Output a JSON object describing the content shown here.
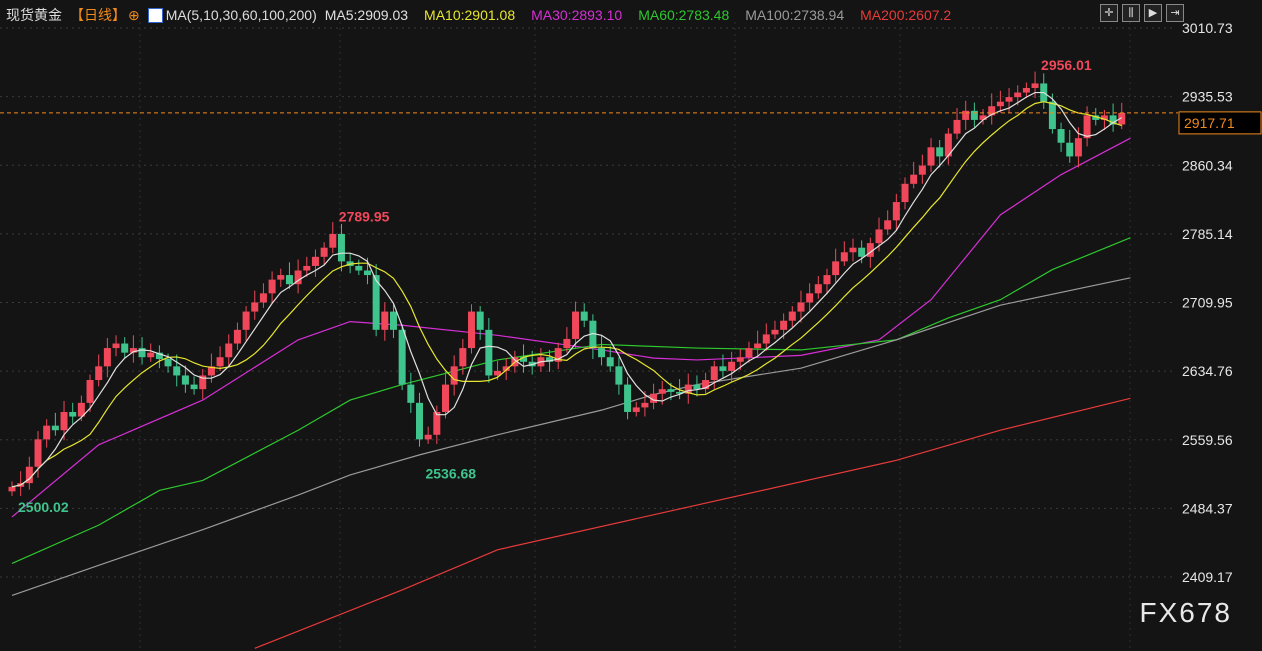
{
  "header": {
    "symbol": "现货黄金",
    "period": "【日线】",
    "ma_label": "MA(5,10,30,60,100,200)",
    "ma": [
      {
        "label": "MA5:2909.03",
        "color": "#e0e0e0"
      },
      {
        "label": "MA10:2901.08",
        "color": "#e6e62e"
      },
      {
        "label": "MA30:2893.10",
        "color": "#d62fd6"
      },
      {
        "label": "MA60:2783.48",
        "color": "#2ec72e"
      },
      {
        "label": "MA100:2738.94",
        "color": "#9a9a9a"
      },
      {
        "label": "MA200:2607.2",
        "color": "#e83a3a"
      }
    ]
  },
  "toolbar": [
    {
      "icon": "crosshair-icon",
      "glyph": "✛"
    },
    {
      "icon": "zoom-range-icon",
      "glyph": "⫼"
    },
    {
      "icon": "play-icon",
      "glyph": "▶"
    },
    {
      "icon": "jump-end-icon",
      "glyph": "⇥"
    }
  ],
  "watermark": "FX678",
  "chart_data": {
    "type": "candlestick",
    "y_ticks": [
      "3010.73",
      "2935.53",
      "2860.34",
      "2785.14",
      "2709.95",
      "2634.76",
      "2559.56",
      "2484.37",
      "2409.17"
    ],
    "ylim": [
      2340,
      3035
    ],
    "last_price": "2917.71",
    "up_color": "#f0485a",
    "down_color": "#3ec48c",
    "annotations": [
      {
        "label": "2956.01",
        "index": 118,
        "price": 2956.01,
        "color": "#f0485a"
      },
      {
        "label": "2789.95",
        "index": 37,
        "price": 2789.95,
        "color": "#f0485a"
      },
      {
        "label": "2536.68",
        "index": 47,
        "price": 2536.68,
        "color": "#3ec48c"
      },
      {
        "label": "2500.02",
        "index": 0,
        "price": 2500.02,
        "color": "#3ec48c"
      }
    ],
    "first_open": 2503,
    "closes": [
      2508,
      2512,
      2530,
      2560,
      2575,
      2570,
      2590,
      2585,
      2600,
      2625,
      2640,
      2660,
      2665,
      2655,
      2660,
      2650,
      2655,
      2648,
      2640,
      2630,
      2620,
      2615,
      2630,
      2640,
      2650,
      2665,
      2680,
      2700,
      2710,
      2720,
      2735,
      2740,
      2730,
      2745,
      2750,
      2760,
      2770,
      2785,
      2755,
      2750,
      2745,
      2740,
      2680,
      2700,
      2680,
      2620,
      2600,
      2560,
      2565,
      2590,
      2620,
      2640,
      2660,
      2700,
      2680,
      2630,
      2635,
      2640,
      2650,
      2645,
      2640,
      2650,
      2645,
      2660,
      2670,
      2700,
      2690,
      2660,
      2650,
      2640,
      2620,
      2590,
      2595,
      2600,
      2610,
      2615,
      2612,
      2610,
      2620,
      2615,
      2625,
      2640,
      2635,
      2645,
      2650,
      2660,
      2665,
      2675,
      2680,
      2690,
      2700,
      2710,
      2720,
      2730,
      2740,
      2755,
      2765,
      2770,
      2760,
      2775,
      2790,
      2800,
      2820,
      2840,
      2850,
      2860,
      2880,
      2870,
      2895,
      2910,
      2920,
      2910,
      2915,
      2925,
      2930,
      2935,
      2940,
      2945,
      2950,
      2930,
      2900,
      2885,
      2870,
      2890,
      2915,
      2910,
      2915,
      2905,
      2917.71
    ],
    "ma_long": [
      {
        "name": "MA30",
        "color": "#d62fd6",
        "points": [
          [
            0,
            2475
          ],
          [
            10,
            2554
          ],
          [
            22,
            2603
          ],
          [
            33,
            2669
          ],
          [
            39,
            2689
          ],
          [
            45,
            2685
          ],
          [
            56,
            2674
          ],
          [
            68,
            2658
          ],
          [
            74,
            2649
          ],
          [
            79,
            2647
          ],
          [
            91,
            2652
          ],
          [
            100,
            2669
          ],
          [
            106,
            2713
          ],
          [
            114,
            2806
          ],
          [
            121,
            2850
          ],
          [
            129,
            2890
          ]
        ]
      },
      {
        "name": "MA60",
        "color": "#2ec72e",
        "points": [
          [
            0,
            2424
          ],
          [
            10,
            2466
          ],
          [
            17,
            2504
          ],
          [
            22,
            2515
          ],
          [
            33,
            2570
          ],
          [
            39,
            2603
          ],
          [
            45,
            2620
          ],
          [
            56,
            2647
          ],
          [
            68,
            2664
          ],
          [
            79,
            2660
          ],
          [
            91,
            2658
          ],
          [
            102,
            2669
          ],
          [
            108,
            2693
          ],
          [
            114,
            2713
          ],
          [
            120,
            2746
          ],
          [
            129,
            2781
          ]
        ]
      },
      {
        "name": "MA100",
        "color": "#9a9a9a",
        "points": [
          [
            0,
            2389
          ],
          [
            10,
            2422
          ],
          [
            22,
            2461
          ],
          [
            33,
            2499
          ],
          [
            39,
            2521
          ],
          [
            47,
            2543
          ],
          [
            56,
            2565
          ],
          [
            68,
            2592
          ],
          [
            74,
            2609
          ],
          [
            79,
            2620
          ],
          [
            91,
            2638
          ],
          [
            102,
            2669
          ],
          [
            114,
            2707
          ],
          [
            129,
            2737
          ]
        ]
      },
      {
        "name": "MA200",
        "color": "#e83a3a",
        "points": [
          [
            28,
            2331
          ],
          [
            45,
            2395
          ],
          [
            56,
            2439
          ],
          [
            79,
            2488
          ],
          [
            102,
            2537
          ],
          [
            114,
            2570
          ],
          [
            129,
            2605
          ]
        ]
      }
    ]
  }
}
